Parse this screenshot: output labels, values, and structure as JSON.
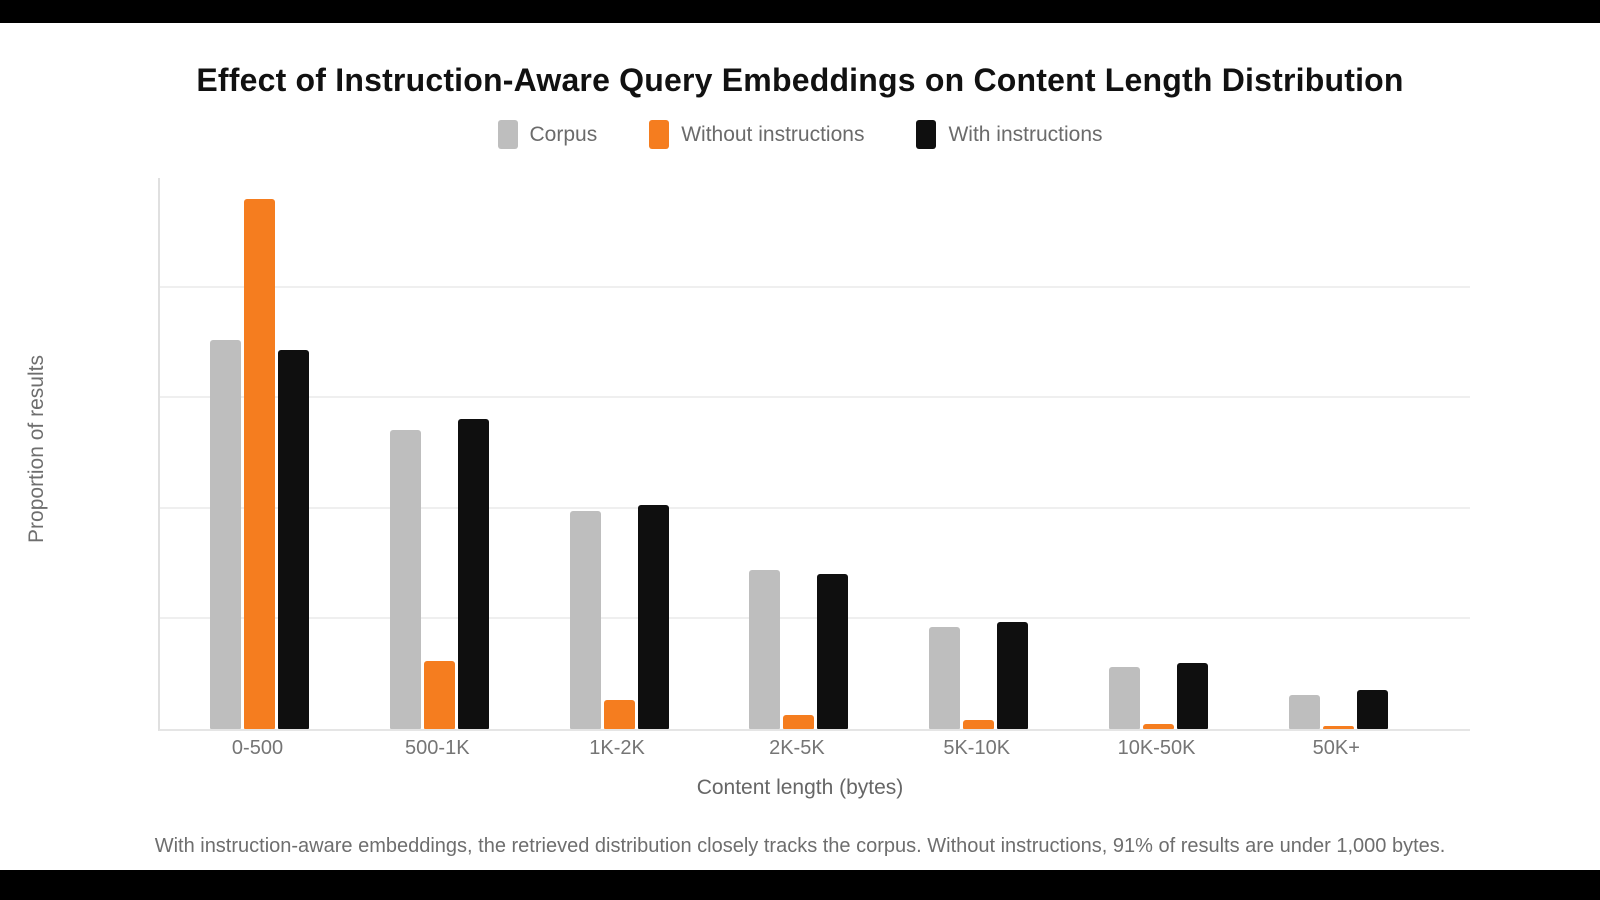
{
  "title": "Effect of Instruction-Aware Query Embeddings on Content Length Distribution",
  "caption": "With instruction-aware embeddings, the retrieved distribution closely tracks the corpus. Without instructions, 91% of results are under 1,000 bytes.",
  "colors": {
    "corpus_gray": "#bebebe",
    "accent_orange": "#f57d1f",
    "series_black": "#0f0f0f",
    "band_black": "#000000"
  },
  "chart_data": {
    "type": "bar",
    "title": "Effect of Instruction-Aware Query Embeddings on Content Length Distribution",
    "xlabel": "Content length (bytes)",
    "ylabel": "Proportion of results",
    "categories": [
      "0-500",
      "500-1K",
      "1K-2K",
      "2K-5K",
      "5K-10K",
      "10K-50K",
      "50K+"
    ],
    "series": [
      {
        "name": "Corpus",
        "color": "#bebebe",
        "values": [
          0.353,
          0.271,
          0.198,
          0.144,
          0.093,
          0.056,
          0.031
        ]
      },
      {
        "name": "Without instructions",
        "color": "#f57d1f",
        "values": [
          0.481,
          0.062,
          0.026,
          0.013,
          0.008,
          0.005,
          0.003
        ]
      },
      {
        "name": "With instructions",
        "color": "#0f0f0f",
        "values": [
          0.344,
          0.281,
          0.203,
          0.141,
          0.097,
          0.06,
          0.035
        ]
      }
    ],
    "ylim": [
      0,
      0.5
    ],
    "gridline_levels": [
      0.1,
      0.2,
      0.3,
      0.4
    ],
    "grid": true,
    "y_tick_labels_visible": false,
    "legend_position": "top"
  }
}
